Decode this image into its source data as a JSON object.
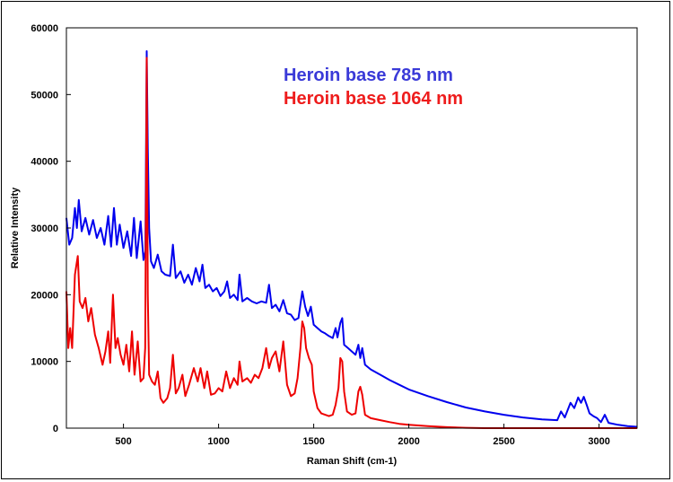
{
  "chart_data": {
    "type": "line",
    "title": "",
    "xlabel": "Raman Shift (cm-1)",
    "ylabel": "Relative Intensity",
    "xlim": [
      200,
      3200
    ],
    "ylim": [
      0,
      60000
    ],
    "x_ticks": [
      "500",
      "1000",
      "1500",
      "2000",
      "2500",
      "3000"
    ],
    "x_tick_values": [
      500,
      1000,
      1500,
      2000,
      2500,
      3000
    ],
    "y_ticks": [
      "0",
      "10000",
      "20000",
      "30000",
      "40000",
      "50000",
      "60000"
    ],
    "y_tick_values": [
      0,
      10000,
      20000,
      30000,
      40000,
      50000,
      60000
    ],
    "grid": false,
    "legend_position": "top-center",
    "series": [
      {
        "name": "Heroin base 785 nm",
        "color": "#0000ee",
        "points": [
          [
            200,
            31500
          ],
          [
            215,
            27500
          ],
          [
            230,
            28500
          ],
          [
            245,
            33000
          ],
          [
            255,
            30000
          ],
          [
            265,
            34200
          ],
          [
            280,
            29500
          ],
          [
            300,
            31500
          ],
          [
            320,
            29000
          ],
          [
            340,
            31200
          ],
          [
            360,
            28500
          ],
          [
            380,
            30000
          ],
          [
            400,
            27500
          ],
          [
            420,
            31800
          ],
          [
            435,
            27200
          ],
          [
            450,
            33000
          ],
          [
            465,
            27500
          ],
          [
            480,
            30500
          ],
          [
            500,
            27000
          ],
          [
            520,
            29500
          ],
          [
            540,
            25800
          ],
          [
            555,
            31500
          ],
          [
            570,
            25500
          ],
          [
            590,
            31000
          ],
          [
            605,
            25200
          ],
          [
            615,
            26500
          ],
          [
            622,
            56500
          ],
          [
            628,
            42000
          ],
          [
            635,
            30000
          ],
          [
            645,
            25000
          ],
          [
            660,
            24000
          ],
          [
            680,
            26000
          ],
          [
            700,
            23500
          ],
          [
            720,
            23000
          ],
          [
            745,
            22800
          ],
          [
            760,
            27500
          ],
          [
            775,
            22500
          ],
          [
            800,
            23500
          ],
          [
            820,
            21800
          ],
          [
            840,
            23000
          ],
          [
            860,
            21500
          ],
          [
            880,
            24000
          ],
          [
            900,
            22000
          ],
          [
            915,
            24500
          ],
          [
            930,
            21000
          ],
          [
            950,
            21500
          ],
          [
            970,
            20500
          ],
          [
            990,
            21000
          ],
          [
            1010,
            19800
          ],
          [
            1030,
            20500
          ],
          [
            1045,
            22000
          ],
          [
            1060,
            19500
          ],
          [
            1080,
            20000
          ],
          [
            1100,
            19200
          ],
          [
            1110,
            23000
          ],
          [
            1125,
            19000
          ],
          [
            1150,
            19500
          ],
          [
            1175,
            19000
          ],
          [
            1200,
            18700
          ],
          [
            1225,
            19000
          ],
          [
            1250,
            18800
          ],
          [
            1265,
            21500
          ],
          [
            1280,
            18000
          ],
          [
            1300,
            18500
          ],
          [
            1320,
            17500
          ],
          [
            1340,
            19200
          ],
          [
            1360,
            17200
          ],
          [
            1380,
            17000
          ],
          [
            1400,
            16200
          ],
          [
            1420,
            16500
          ],
          [
            1440,
            20500
          ],
          [
            1455,
            18200
          ],
          [
            1470,
            16800
          ],
          [
            1485,
            18200
          ],
          [
            1500,
            15500
          ],
          [
            1520,
            15000
          ],
          [
            1540,
            14500
          ],
          [
            1560,
            14200
          ],
          [
            1580,
            13800
          ],
          [
            1600,
            13500
          ],
          [
            1615,
            15000
          ],
          [
            1625,
            13600
          ],
          [
            1640,
            15800
          ],
          [
            1650,
            16500
          ],
          [
            1660,
            12500
          ],
          [
            1680,
            12000
          ],
          [
            1700,
            11500
          ],
          [
            1720,
            11000
          ],
          [
            1735,
            12500
          ],
          [
            1745,
            10500
          ],
          [
            1755,
            12000
          ],
          [
            1770,
            9500
          ],
          [
            1800,
            8800
          ],
          [
            1850,
            8000
          ],
          [
            1900,
            7200
          ],
          [
            1950,
            6500
          ],
          [
            2000,
            5800
          ],
          [
            2100,
            4800
          ],
          [
            2200,
            3900
          ],
          [
            2300,
            3100
          ],
          [
            2400,
            2500
          ],
          [
            2500,
            2000
          ],
          [
            2600,
            1600
          ],
          [
            2700,
            1300
          ],
          [
            2780,
            1200
          ],
          [
            2800,
            2500
          ],
          [
            2820,
            1600
          ],
          [
            2850,
            3800
          ],
          [
            2870,
            3000
          ],
          [
            2890,
            4600
          ],
          [
            2905,
            3800
          ],
          [
            2920,
            4700
          ],
          [
            2935,
            3500
          ],
          [
            2950,
            2200
          ],
          [
            2970,
            1800
          ],
          [
            2990,
            1500
          ],
          [
            3010,
            900
          ],
          [
            3030,
            2000
          ],
          [
            3050,
            800
          ],
          [
            3100,
            500
          ],
          [
            3150,
            300
          ],
          [
            3200,
            200
          ]
        ]
      },
      {
        "name": "Heroin base 1064 nm",
        "color": "#ee0000",
        "points": [
          [
            200,
            20500
          ],
          [
            210,
            12000
          ],
          [
            220,
            15000
          ],
          [
            230,
            12000
          ],
          [
            245,
            23000
          ],
          [
            260,
            25800
          ],
          [
            270,
            19000
          ],
          [
            285,
            18000
          ],
          [
            300,
            19500
          ],
          [
            315,
            16000
          ],
          [
            330,
            18000
          ],
          [
            350,
            14000
          ],
          [
            370,
            12000
          ],
          [
            390,
            9500
          ],
          [
            405,
            11500
          ],
          [
            420,
            14500
          ],
          [
            430,
            9800
          ],
          [
            445,
            20000
          ],
          [
            458,
            12000
          ],
          [
            470,
            13500
          ],
          [
            485,
            11000
          ],
          [
            500,
            9500
          ],
          [
            515,
            12500
          ],
          [
            530,
            8500
          ],
          [
            545,
            14500
          ],
          [
            558,
            8000
          ],
          [
            575,
            13000
          ],
          [
            590,
            7000
          ],
          [
            605,
            7500
          ],
          [
            614,
            12000
          ],
          [
            622,
            55500
          ],
          [
            628,
            20000
          ],
          [
            635,
            8000
          ],
          [
            650,
            7000
          ],
          [
            665,
            6500
          ],
          [
            680,
            8500
          ],
          [
            695,
            4500
          ],
          [
            710,
            3800
          ],
          [
            730,
            4500
          ],
          [
            745,
            6000
          ],
          [
            760,
            11000
          ],
          [
            775,
            5200
          ],
          [
            790,
            6000
          ],
          [
            810,
            8000
          ],
          [
            825,
            4800
          ],
          [
            845,
            6500
          ],
          [
            870,
            9000
          ],
          [
            890,
            7000
          ],
          [
            905,
            9000
          ],
          [
            925,
            6000
          ],
          [
            940,
            8500
          ],
          [
            960,
            5000
          ],
          [
            980,
            5200
          ],
          [
            1000,
            6000
          ],
          [
            1020,
            5500
          ],
          [
            1040,
            8500
          ],
          [
            1060,
            6000
          ],
          [
            1080,
            7500
          ],
          [
            1100,
            6500
          ],
          [
            1110,
            10000
          ],
          [
            1125,
            7000
          ],
          [
            1150,
            7500
          ],
          [
            1170,
            6800
          ],
          [
            1190,
            8000
          ],
          [
            1210,
            7500
          ],
          [
            1230,
            9000
          ],
          [
            1250,
            12000
          ],
          [
            1265,
            9000
          ],
          [
            1280,
            10500
          ],
          [
            1300,
            11500
          ],
          [
            1320,
            8500
          ],
          [
            1340,
            13000
          ],
          [
            1360,
            6500
          ],
          [
            1380,
            4800
          ],
          [
            1400,
            5200
          ],
          [
            1415,
            7500
          ],
          [
            1430,
            12000
          ],
          [
            1440,
            16000
          ],
          [
            1450,
            15000
          ],
          [
            1460,
            12000
          ],
          [
            1475,
            10500
          ],
          [
            1490,
            9500
          ],
          [
            1500,
            5500
          ],
          [
            1520,
            3000
          ],
          [
            1540,
            2200
          ],
          [
            1560,
            2000
          ],
          [
            1580,
            1800
          ],
          [
            1600,
            2000
          ],
          [
            1615,
            3500
          ],
          [
            1630,
            6000
          ],
          [
            1640,
            10500
          ],
          [
            1650,
            10000
          ],
          [
            1660,
            5500
          ],
          [
            1675,
            2500
          ],
          [
            1700,
            2000
          ],
          [
            1720,
            2200
          ],
          [
            1735,
            5500
          ],
          [
            1745,
            6200
          ],
          [
            1755,
            5000
          ],
          [
            1770,
            2000
          ],
          [
            1800,
            1500
          ],
          [
            1850,
            1200
          ],
          [
            1900,
            900
          ],
          [
            1950,
            650
          ],
          [
            2000,
            500
          ],
          [
            2100,
            300
          ],
          [
            2200,
            150
          ],
          [
            2300,
            50
          ],
          [
            2400,
            0
          ],
          [
            3200,
            0
          ]
        ]
      }
    ]
  }
}
